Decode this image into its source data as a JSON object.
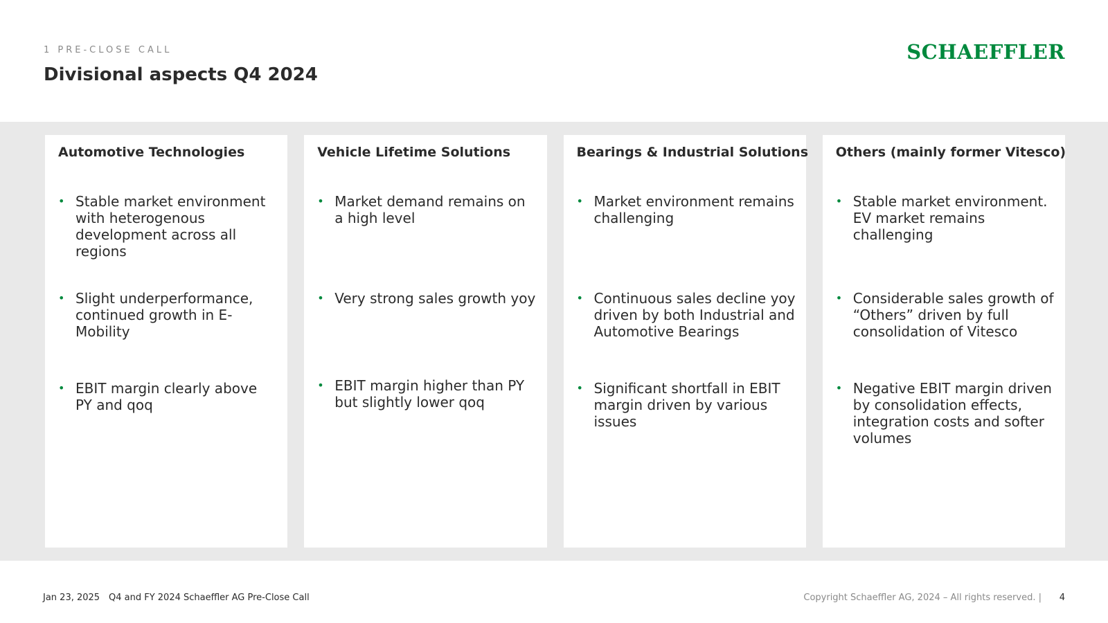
{
  "header": {
    "section_label": "1 PRE-CLOSE CALL",
    "title": "Divisional aspects Q4 2024",
    "logo_text": "SCHAEFFLER"
  },
  "colors": {
    "accent": "#00893d",
    "band": "#e9e9e9",
    "text": "#2b2b2b",
    "muted": "#8a8a8a"
  },
  "cards": [
    {
      "title": "Automotive Technologies",
      "bullets": [
        "Stable market environment with heterogenous development across all regions",
        "Slight underperformance, continued growth in E-Mobility",
        "EBIT margin clearly above PY and qoq"
      ]
    },
    {
      "title": "Vehicle Lifetime Solutions",
      "bullets": [
        "Market demand remains on a high level",
        "Very strong sales growth yoy",
        "EBIT margin higher than PY but slightly lower qoq"
      ]
    },
    {
      "title": "Bearings & Industrial Solutions",
      "bullets": [
        "Market environment remains challenging",
        "Continuous sales decline yoy driven by both Industrial and Automotive Bearings",
        "Significant shortfall in EBIT margin driven by various issues"
      ]
    },
    {
      "title": "Others (mainly former Vitesco)",
      "bullets": [
        "Stable market environment. EV market remains challenging",
        "Considerable sales growth of “Others” driven by full consolidation of Vitesco",
        "Negative EBIT margin driven by consolidation effects, integration costs and softer volumes"
      ]
    }
  ],
  "footer": {
    "date": "Jan 23, 2025",
    "event": "Q4 and FY 2024 Schaeffler AG Pre-Close Call",
    "copyright": "Copyright Schaeffler AG, 2024 – All rights reserved. |",
    "page_number": "4"
  }
}
